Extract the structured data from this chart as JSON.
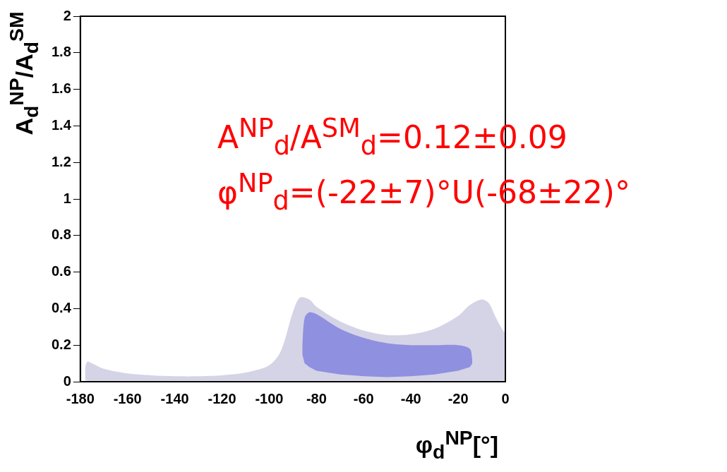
{
  "chart_data": {
    "type": "area",
    "xlabel": "φ$_{d}$$^{NP}$[°]",
    "ylabel": "A$_{d}$$^{NP}$/A$_{d}$$^{SM}$",
    "xlim": [
      -180,
      0
    ],
    "xticks": [
      -180,
      -160,
      -140,
      -120,
      -100,
      -80,
      -60,
      -40,
      -20,
      0
    ],
    "ylim": [
      0,
      2
    ],
    "yticks": [
      0,
      0.2,
      0.4,
      0.6,
      0.8,
      1,
      1.2,
      1.4,
      1.6,
      1.8,
      2
    ],
    "annotations": [
      "A$^{NP}$$_{d}$/A$^{SM}$$_{d}$=0.12±0.09",
      "φ$^{NP}$$_{d}$=(-22±7)°U(-68±22)°"
    ],
    "series": [
      {
        "color": "#d4d4e6",
        "x": [
          -178,
          -177,
          -175,
          -170,
          -160,
          -150,
          -140,
          -130,
          -120,
          -110,
          -100,
          -95,
          -90,
          -87,
          -83,
          -80,
          -70,
          -60,
          -50,
          -40,
          -30,
          -20,
          -15,
          -10,
          -7,
          -4,
          -1,
          0
        ],
        "values": [
          null,
          null,
          null,
          null,
          null,
          null,
          null,
          null,
          null,
          null,
          null,
          null,
          null,
          null,
          null,
          null,
          null,
          null,
          null,
          null,
          null,
          null,
          null,
          null,
          null,
          null,
          null,
          null
        ],
        "upper": [
          0.08,
          0.11,
          0.1,
          0.07,
          0.045,
          0.035,
          0.03,
          0.03,
          0.035,
          0.05,
          0.09,
          0.17,
          0.38,
          0.46,
          0.45,
          0.41,
          0.33,
          0.28,
          0.255,
          0.26,
          0.29,
          0.36,
          0.42,
          0.45,
          0.43,
          0.35,
          0.28,
          0.27
        ],
        "lower": [
          0.01,
          0.005,
          0.005,
          0.005,
          0.005,
          0.005,
          0.005,
          0.005,
          0.005,
          0.005,
          0.005,
          0.005,
          0.005,
          0.005,
          0.005,
          0.005,
          0.005,
          0.005,
          0.005,
          0.005,
          0.005,
          0.005,
          0.005,
          0.005,
          0.005,
          0.005,
          0.005,
          0.005
        ]
      },
      {
        "color": "#9090e0",
        "x": [
          -86,
          -85,
          -83,
          -80,
          -70,
          -60,
          -50,
          -40,
          -30,
          -20,
          -15,
          -14
        ],
        "values": [
          null,
          null,
          null,
          null,
          null,
          null,
          null,
          null,
          null,
          null,
          null,
          null
        ],
        "upper": [
          0.2,
          0.35,
          0.38,
          0.37,
          0.29,
          0.24,
          0.21,
          0.2,
          0.2,
          0.2,
          0.18,
          0.12
        ],
        "lower": [
          0.15,
          0.1,
          0.08,
          0.06,
          0.04,
          0.03,
          0.025,
          0.03,
          0.04,
          0.06,
          0.08,
          0.1
        ]
      }
    ]
  }
}
